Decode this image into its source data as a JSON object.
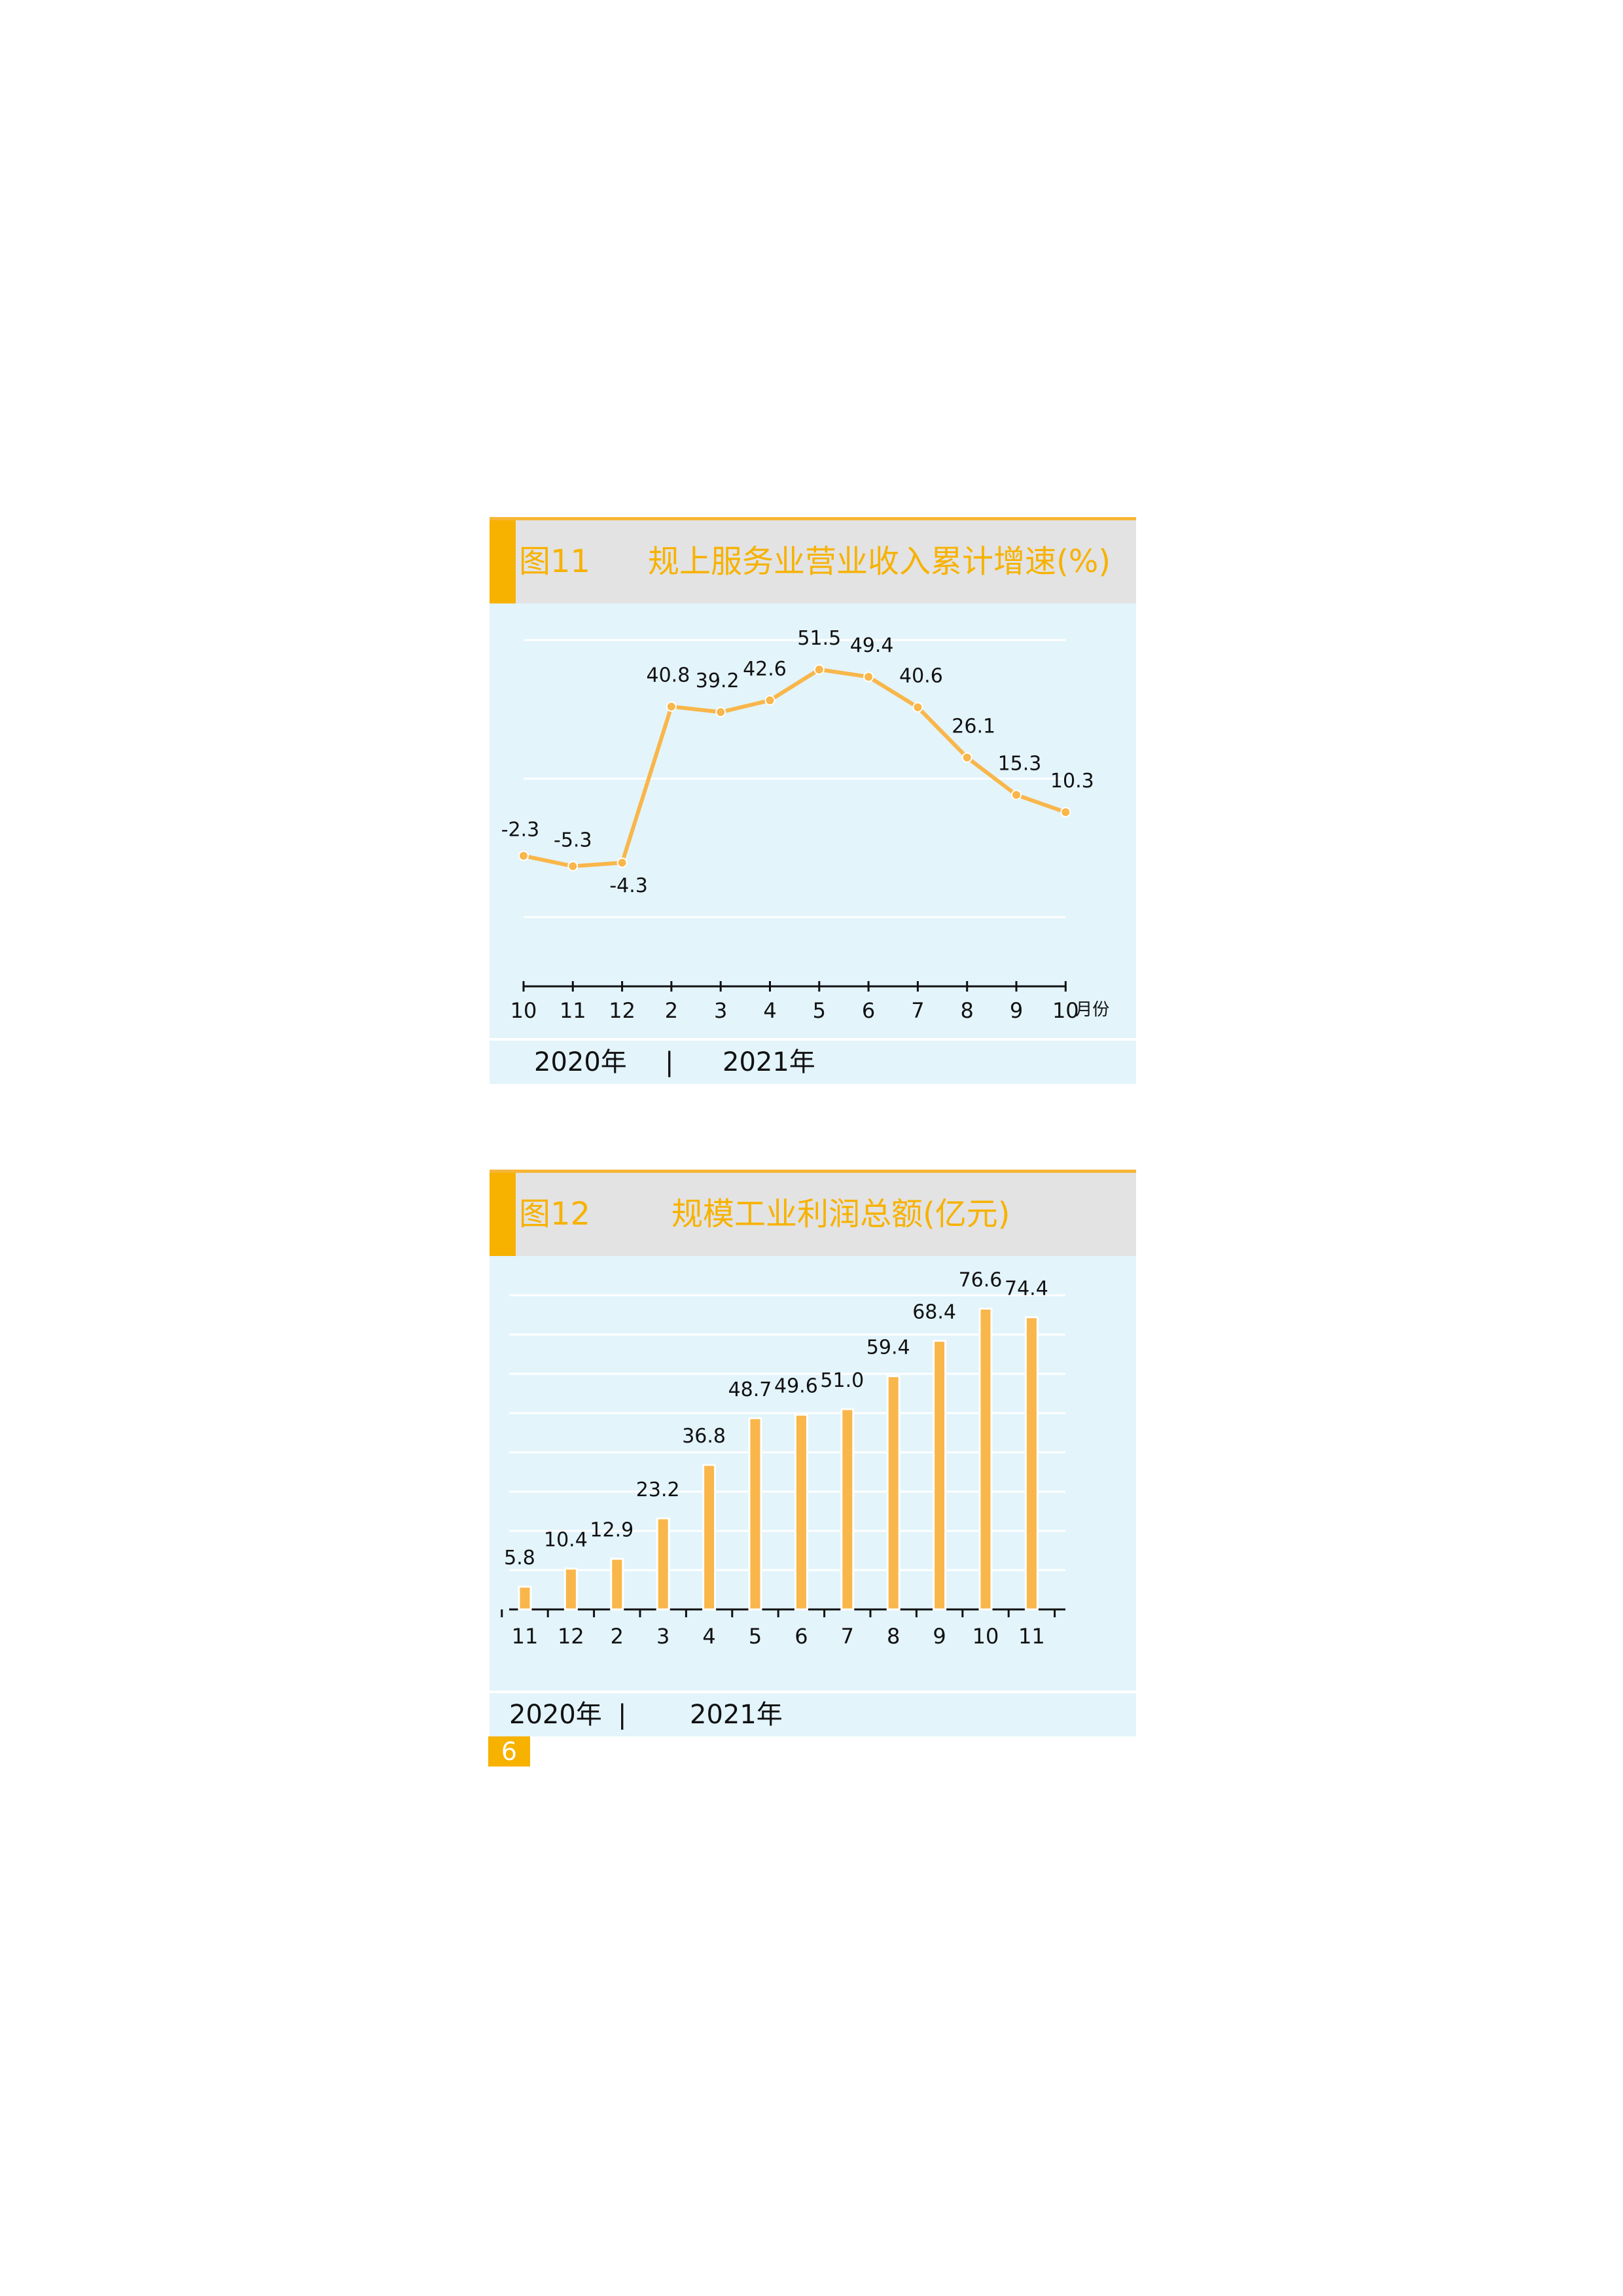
{
  "charts": [
    {
      "figure_label": "图11",
      "title": "规上服务业营业收入累计增速(%)",
      "year_left": "2020年",
      "year_separator": "|",
      "year_right": "2021年"
    },
    {
      "figure_label": "图12",
      "title": "规模工业利润总额(亿元)",
      "year_left": "2020年",
      "year_separator": "|",
      "year_right": "2021年"
    }
  ],
  "page_number": "6",
  "colors": {
    "accent": "#f7b200",
    "series": "#f9b64a",
    "plot_bg": "#e3f4fb",
    "title_bg": "#e3e3e3"
  },
  "chart_data": [
    {
      "type": "line",
      "categories": [
        "10",
        "11",
        "12",
        "2",
        "3",
        "4",
        "5",
        "6",
        "7",
        "8",
        "9",
        "10"
      ],
      "values": [
        -2.3,
        -5.3,
        -4.3,
        40.8,
        39.2,
        42.6,
        51.5,
        49.4,
        40.6,
        26.1,
        15.3,
        10.3
      ],
      "data_labels": [
        "-2.3",
        "-5.3",
        "-4.3",
        "40.8",
        "39.2",
        "42.6",
        "51.5",
        "49.4",
        "40.6",
        "26.1",
        "15.3",
        "10.3"
      ],
      "title": "规上服务业营业收入累计增速(%)",
      "xlabel": "月份",
      "ylabel": "",
      "ylim": [
        -40,
        60
      ],
      "grid": true,
      "legend": "none"
    },
    {
      "type": "bar",
      "categories": [
        "11",
        "12",
        "2",
        "3",
        "4",
        "5",
        "6",
        "7",
        "8",
        "9",
        "10",
        "11"
      ],
      "values": [
        5.8,
        10.4,
        12.9,
        23.2,
        36.8,
        48.7,
        49.6,
        51.0,
        59.4,
        68.4,
        76.6,
        74.4
      ],
      "data_labels": [
        "5.8",
        "10.4",
        "12.9",
        "23.2",
        "36.8",
        "48.7",
        "49.6",
        "51.0",
        "59.4",
        "68.4",
        "76.6",
        "74.4"
      ],
      "title": "规模工业利润总额(亿元)",
      "xlabel": "",
      "ylabel": "",
      "ylim": [
        0,
        90
      ],
      "grid": true,
      "legend": "none"
    }
  ]
}
